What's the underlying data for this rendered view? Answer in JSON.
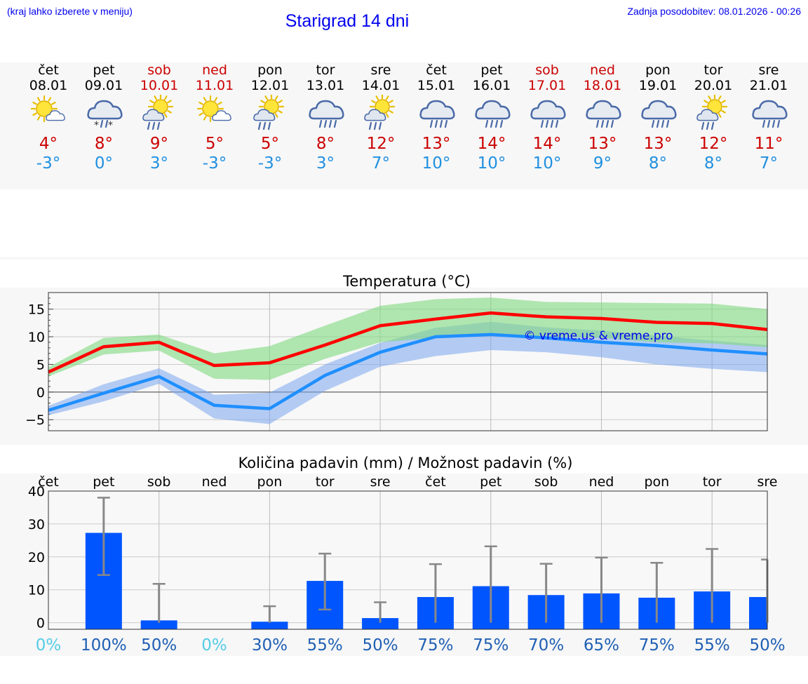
{
  "header": {
    "location_hint": "(kraj lahko izberete v meniju)",
    "title": "Starigrad 14 dni",
    "updated": "Zadnja posodobitev: 08.01.2026 - 00:26"
  },
  "colors": {
    "max": "#ff0000",
    "min": "#1f8fff",
    "maxBand": "#7ed87e",
    "minBand": "#7aa6ee",
    "bar": "#0055ff",
    "weekend": "#cc0000",
    "link": "#0000ee",
    "prob": "#1f5fb4",
    "probZero": "#55cce6"
  },
  "days": [
    {
      "name": "čet",
      "date": "08.01",
      "icon": "sun-cloud-icon",
      "tmax": "4°",
      "tmin": "-3°",
      "weekend": false
    },
    {
      "name": "pet",
      "date": "09.01",
      "icon": "cloud-snow-icon",
      "tmax": "8°",
      "tmin": "0°",
      "weekend": false
    },
    {
      "name": "sob",
      "date": "10.01",
      "icon": "sun-cloud-rain-icon",
      "tmax": "9°",
      "tmin": "3°",
      "weekend": true
    },
    {
      "name": "ned",
      "date": "11.01",
      "icon": "sun-cloud-icon",
      "tmax": "5°",
      "tmin": "-3°",
      "weekend": true
    },
    {
      "name": "pon",
      "date": "12.01",
      "icon": "sun-cloud-rain-icon",
      "tmax": "5°",
      "tmin": "-3°",
      "weekend": false
    },
    {
      "name": "tor",
      "date": "13.01",
      "icon": "cloud-rain-icon",
      "tmax": "8°",
      "tmin": "3°",
      "weekend": false
    },
    {
      "name": "sre",
      "date": "14.01",
      "icon": "sun-cloud-rain-icon",
      "tmax": "12°",
      "tmin": "7°",
      "weekend": false
    },
    {
      "name": "čet",
      "date": "15.01",
      "icon": "cloud-rain-icon",
      "tmax": "13°",
      "tmin": "10°",
      "weekend": false
    },
    {
      "name": "pet",
      "date": "16.01",
      "icon": "cloud-rain-icon",
      "tmax": "14°",
      "tmin": "10°",
      "weekend": false
    },
    {
      "name": "sob",
      "date": "17.01",
      "icon": "cloud-rain-icon",
      "tmax": "14°",
      "tmin": "10°",
      "weekend": true
    },
    {
      "name": "ned",
      "date": "18.01",
      "icon": "cloud-rain-icon",
      "tmax": "13°",
      "tmin": "9°",
      "weekend": true
    },
    {
      "name": "pon",
      "date": "19.01",
      "icon": "cloud-rain-icon",
      "tmax": "13°",
      "tmin": "8°",
      "weekend": false
    },
    {
      "name": "tor",
      "date": "20.01",
      "icon": "sun-cloud-rain-icon",
      "tmax": "12°",
      "tmin": "8°",
      "weekend": false
    },
    {
      "name": "sre",
      "date": "21.01",
      "icon": "cloud-rain-icon",
      "tmax": "11°",
      "tmin": "7°",
      "weekend": false
    }
  ],
  "chart_data": [
    {
      "type": "line",
      "title": "Temperatura (°C)",
      "watermark": "© vreme.us & vreme.pro",
      "x": [
        0,
        1,
        2,
        3,
        4,
        5,
        6,
        7,
        8,
        9,
        10,
        11,
        12,
        13
      ],
      "ylim": [
        -7,
        18
      ],
      "yticks": [
        15,
        10,
        5,
        0,
        -5
      ],
      "ytick_labels": [
        "15",
        "10",
        "5",
        "0",
        "−5"
      ],
      "series": [
        {
          "name": "max",
          "values": [
            3.6,
            8.2,
            9.0,
            4.8,
            5.3,
            8.5,
            12.0,
            13.2,
            14.3,
            13.6,
            13.3,
            12.6,
            12.4,
            11.3
          ],
          "band_low": [
            2.8,
            6.8,
            7.5,
            2.4,
            2.2,
            6.0,
            9.0,
            9.8,
            10.5,
            10.0,
            9.8,
            9.0,
            8.8,
            8.1
          ],
          "band_high": [
            4.5,
            9.8,
            10.4,
            7.0,
            8.3,
            12.0,
            15.6,
            16.8,
            17.1,
            16.3,
            16.2,
            16.1,
            16.0,
            15.0
          ]
        },
        {
          "name": "min",
          "values": [
            -3.3,
            -0.2,
            2.8,
            -2.4,
            -3.0,
            3.0,
            7.2,
            10.0,
            10.4,
            9.8,
            9.0,
            8.4,
            7.6,
            6.9
          ],
          "band_low": [
            -4.2,
            -1.7,
            1.5,
            -4.8,
            -5.8,
            0.2,
            4.6,
            6.5,
            7.6,
            7.2,
            6.3,
            5.0,
            4.2,
            3.6
          ],
          "band_high": [
            -2.5,
            1.4,
            4.3,
            -0.5,
            -0.1,
            5.0,
            8.9,
            11.6,
            12.7,
            11.7,
            11.1,
            10.2,
            9.3,
            8.5
          ]
        }
      ]
    },
    {
      "type": "bar",
      "title": "Količina padavin (mm) / Možnost padavin (%)",
      "categories": [
        "čet",
        "pet",
        "sob",
        "ned",
        "pon",
        "tor",
        "sre",
        "čet",
        "pet",
        "sob",
        "ned",
        "pon",
        "tor",
        "sre"
      ],
      "values": [
        0,
        27.3,
        0.7,
        0,
        0.3,
        12.7,
        1.4,
        7.8,
        11.1,
        8.4,
        8.9,
        7.6,
        9.5,
        7.8
      ],
      "error_low": [
        0,
        14.5,
        0,
        0,
        0,
        4.0,
        0,
        0,
        0,
        0,
        0,
        0,
        0,
        0
      ],
      "error_high": [
        0,
        38.0,
        11.8,
        0,
        5.0,
        21.0,
        6.2,
        17.8,
        23.2,
        17.9,
        19.8,
        18.2,
        22.4,
        19.2
      ],
      "probabilities": [
        "0%",
        "100%",
        "50%",
        "0%",
        "30%",
        "55%",
        "50%",
        "75%",
        "75%",
        "70%",
        "65%",
        "75%",
        "55%",
        "50%"
      ],
      "ylim": [
        -2,
        40
      ],
      "yticks": [
        40,
        30,
        20,
        10,
        0
      ],
      "ytick_labels": [
        "40",
        "30",
        "20",
        "10",
        "0"
      ]
    }
  ]
}
